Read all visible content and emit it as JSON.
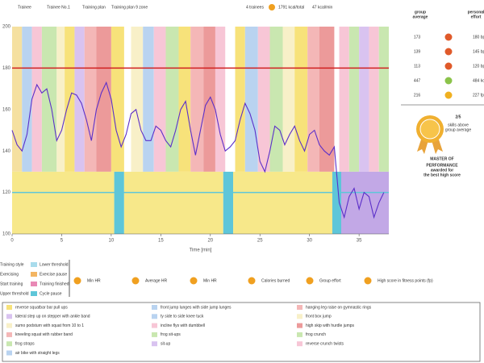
{
  "header": {
    "trainee_label": "Trainee",
    "trainee": "Trainee No.1",
    "plan_label": "Training plan",
    "plan": "Training plan 9 zone",
    "trainees": "4 trainees",
    "kcal_total": "1791 kcal/total",
    "kcal_min": "47 kcal/min"
  },
  "chart_data": {
    "type": "line",
    "x_label": "Time [min]",
    "x": [
      0,
      0.5,
      1,
      1.5,
      2,
      2.5,
      3,
      3.5,
      4,
      4.5,
      5,
      5.5,
      6,
      6.5,
      7,
      7.5,
      8,
      8.5,
      9,
      9.5,
      10,
      10.5,
      11,
      11.5,
      12,
      12.5,
      13,
      13.5,
      14,
      14.5,
      15,
      15.5,
      16,
      16.5,
      17,
      17.5,
      18,
      18.5,
      19,
      19.5,
      20,
      20.5,
      21,
      21.5,
      22,
      22.5,
      23,
      23.5,
      24,
      24.5,
      25,
      25.5,
      26,
      26.5,
      27,
      27.5,
      28,
      28.5,
      29,
      29.5,
      30,
      30.5,
      31,
      31.5,
      32,
      32.5,
      33,
      33.5,
      34,
      34.5,
      35,
      35.5,
      36,
      36.5,
      37,
      37.5
    ],
    "series": [
      {
        "name": "Heart rate",
        "color": "#5b2fc9",
        "values": [
          150,
          143,
          140,
          148,
          165,
          172,
          168,
          170,
          160,
          145,
          150,
          160,
          168,
          167,
          163,
          155,
          145,
          160,
          168,
          173,
          165,
          150,
          142,
          148,
          158,
          160,
          150,
          145,
          145,
          152,
          150,
          145,
          142,
          150,
          160,
          164,
          150,
          138,
          150,
          162,
          166,
          160,
          148,
          140,
          142,
          145,
          155,
          163,
          158,
          150,
          135,
          130,
          140,
          152,
          150,
          143,
          148,
          152,
          145,
          140,
          148,
          150,
          143,
          140,
          138,
          142,
          115,
          108,
          118,
          122,
          112,
          120,
          118,
          108,
          115,
          120
        ]
      }
    ],
    "xlim": [
      0,
      38
    ],
    "xticks": [
      0,
      5,
      10,
      15,
      20,
      25,
      30,
      35
    ],
    "ylim": [
      100,
      200
    ],
    "yticks": [
      100,
      120,
      140,
      160,
      180,
      200
    ],
    "upper_threshold": 180,
    "lower_threshold": 120,
    "style_zone_top": 130,
    "segments": [
      {
        "start": 0,
        "end": 1,
        "color": "#f5e0a0"
      },
      {
        "start": 1,
        "end": 2,
        "color": "#b9d3f0"
      },
      {
        "start": 2,
        "end": 3,
        "color": "#f7c6d6"
      },
      {
        "start": 3,
        "end": 4.5,
        "color": "#c9e7b0"
      },
      {
        "start": 4.5,
        "end": 5.3,
        "color": "#f8f0c8"
      },
      {
        "start": 5.3,
        "end": 6.3,
        "color": "#f7e27a"
      },
      {
        "start": 6.3,
        "end": 7.3,
        "color": "#d9c3f0"
      },
      {
        "start": 7.3,
        "end": 8.5,
        "color": "#f4b7b7"
      },
      {
        "start": 8.5,
        "end": 10,
        "color": "#ec9a9a"
      },
      {
        "start": 10,
        "end": 11.3,
        "color": "#f7e27a"
      },
      {
        "start": 12,
        "end": 13.2,
        "color": "#f8f0c8"
      },
      {
        "start": 13.2,
        "end": 14.3,
        "color": "#b9d3f0"
      },
      {
        "start": 14.3,
        "end": 15.5,
        "color": "#f7c6d6"
      },
      {
        "start": 15.5,
        "end": 16.8,
        "color": "#c9e7b0"
      },
      {
        "start": 16.8,
        "end": 18,
        "color": "#f7e27a"
      },
      {
        "start": 18,
        "end": 19.3,
        "color": "#f4b7b7"
      },
      {
        "start": 19.3,
        "end": 20.5,
        "color": "#ec9a9a"
      },
      {
        "start": 20.5,
        "end": 21.5,
        "color": "#f7c6d6"
      },
      {
        "start": 22.5,
        "end": 23.5,
        "color": "#f7e27a"
      },
      {
        "start": 23.5,
        "end": 24.8,
        "color": "#b9d3f0"
      },
      {
        "start": 24.8,
        "end": 26,
        "color": "#f7c6d6"
      },
      {
        "start": 26,
        "end": 27.3,
        "color": "#c9e7b0"
      },
      {
        "start": 27.3,
        "end": 28.5,
        "color": "#f8f0c8"
      },
      {
        "start": 28.5,
        "end": 29.8,
        "color": "#f7e27a"
      },
      {
        "start": 29.8,
        "end": 31,
        "color": "#f4b7b7"
      },
      {
        "start": 31,
        "end": 32.5,
        "color": "#ec9a9a"
      },
      {
        "start": 33,
        "end": 34,
        "color": "#f7c6d6"
      },
      {
        "start": 34,
        "end": 35,
        "color": "#c9e7b0"
      },
      {
        "start": 35,
        "end": 36,
        "color": "#d9c3f0"
      },
      {
        "start": 36,
        "end": 37,
        "color": "#f7c6d6"
      },
      {
        "start": 37,
        "end": 38,
        "color": "#c9e7b0"
      }
    ],
    "lower_segments": [
      {
        "start": 0,
        "end": 10.3,
        "color": "#f7e88a"
      },
      {
        "start": 10.3,
        "end": 11.3,
        "color": "#5ec6d9"
      },
      {
        "start": 11.3,
        "end": 21.3,
        "color": "#f7e88a"
      },
      {
        "start": 21.3,
        "end": 22.3,
        "color": "#5ec6d9"
      },
      {
        "start": 22.3,
        "end": 32.3,
        "color": "#f7e88a"
      },
      {
        "start": 32.3,
        "end": 33.2,
        "color": "#5ec6d9"
      },
      {
        "start": 33.2,
        "end": 38,
        "color": "#c2a8e6"
      }
    ]
  },
  "stats": {
    "headers": [
      [
        "group",
        "average"
      ],
      [
        "personal",
        "effort"
      ]
    ],
    "rows": [
      [
        "173",
        "180 bpm"
      ],
      [
        "139",
        "145 bpm"
      ],
      [
        "113",
        "120 bpm"
      ],
      [
        "447",
        "484 kcal"
      ],
      [
        "216",
        "227 fp"
      ]
    ]
  },
  "badge": {
    "score": "2/5",
    "lines": [
      "skills above",
      "group average"
    ],
    "title": [
      "MASTER OF",
      "PERFORMANCE"
    ],
    "award": [
      "awarded for",
      "the best high score"
    ]
  },
  "legend": [
    {
      "label": "Training style",
      "color": null
    },
    {
      "label": "Exercising",
      "color": null
    },
    {
      "label": "Start training",
      "color": null
    },
    {
      "label": "Upper threshold",
      "color": null
    },
    {
      "label": "Lower threshold",
      "color": "#a9dcec"
    },
    {
      "label": "Exercise pause",
      "color": "#f3b562"
    },
    {
      "label": "Training finished",
      "color": "#e889b5"
    },
    {
      "label": "Cycle pause",
      "color": "#5ec6d9"
    }
  ],
  "icons": [
    "Min HR",
    "Average HR",
    "Min HR",
    "Calories burned",
    "Group effort",
    "High score in fitness points (fp)"
  ],
  "exercises": [
    [
      {
        "label": "reverse squatbar bar pull ups",
        "color": "#f7e27a"
      },
      {
        "label": "lateral step up on stepper with ankle band",
        "color": "#d9c3f0"
      },
      {
        "label": "sumo podsturn with squat from 10 to 1",
        "color": "#f8f0c8"
      },
      {
        "label": "kneeling squat with rubber band",
        "color": "#f4b7b7"
      },
      {
        "label": "frog straps",
        "color": "#c9e7b0"
      },
      {
        "label": "air bike with straight legs",
        "color": "#b9d3f0"
      }
    ],
    [
      {
        "label": "front jump lunges with side jump lunges",
        "color": "#b9d3f0"
      },
      {
        "label": "ty side to side knee tuck",
        "color": "#b9d3f0"
      },
      {
        "label": "incline flys with dumbbell",
        "color": "#f7c6d6"
      },
      {
        "label": "frog sit-ups",
        "color": "#c9e7b0"
      },
      {
        "label": "sit-up",
        "color": "#d9c3f0"
      }
    ],
    [
      {
        "label": "hanging leg raise on gymnastic rings",
        "color": "#f4b7b7"
      },
      {
        "label": "front box jump",
        "color": "#f8f0c8"
      },
      {
        "label": "high skip with hurdle jumps",
        "color": "#ec9a9a"
      },
      {
        "label": "frog crunch",
        "color": "#c9e7b0"
      },
      {
        "label": "reverse crunch twists",
        "color": "#f7c6d6"
      }
    ]
  ]
}
